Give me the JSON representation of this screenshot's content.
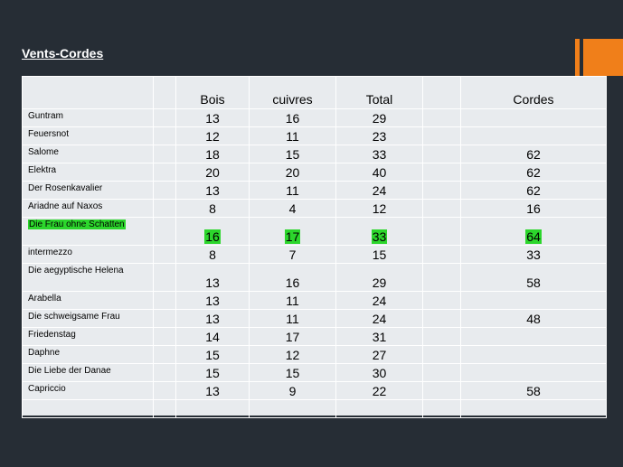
{
  "slide": {
    "title": "Vents-Cordes",
    "accent_color": "#f07f1a",
    "highlight_color": "#2cd62c"
  },
  "table": {
    "headers": [
      "",
      "",
      "Bois",
      "cuivres",
      "Total",
      "",
      "Cordes"
    ],
    "rows": [
      {
        "name": "Guntram",
        "bois": "13",
        "cuivres": "16",
        "total": "29",
        "cordes": ""
      },
      {
        "name": "Feuersnot",
        "bois": "12",
        "cuivres": "11",
        "total": "23",
        "cordes": ""
      },
      {
        "name": "Salome",
        "bois": "18",
        "cuivres": "15",
        "total": "33",
        "cordes": "62"
      },
      {
        "name": "Elektra",
        "bois": "20",
        "cuivres": "20",
        "total": "40",
        "cordes": "62"
      },
      {
        "name": "Der Rosenkavalier",
        "bois": "13",
        "cuivres": "11",
        "total": "24",
        "cordes": "62"
      },
      {
        "name": "Ariadne auf Naxos",
        "bois": "8",
        "cuivres": "4",
        "total": "12",
        "cordes": "16"
      },
      {
        "name": "Die Frau ohne Schatten",
        "bois": "16",
        "cuivres": "17",
        "total": "33",
        "cordes": "64",
        "highlighted": true
      },
      {
        "name": "intermezzo",
        "bois": "8",
        "cuivres": "7",
        "total": "15",
        "cordes": "33"
      },
      {
        "name": "Die aegyptische Helena",
        "bois": "13",
        "cuivres": "16",
        "total": "29",
        "cordes": "58"
      },
      {
        "name": "Arabella",
        "bois": "13",
        "cuivres": "11",
        "total": "24",
        "cordes": ""
      },
      {
        "name": "Die schweigsame Frau",
        "bois": "13",
        "cuivres": "11",
        "total": "24",
        "cordes": "48"
      },
      {
        "name": "Friedenstag",
        "bois": "14",
        "cuivres": "17",
        "total": "31",
        "cordes": ""
      },
      {
        "name": "Daphne",
        "bois": "15",
        "cuivres": "12",
        "total": "27",
        "cordes": ""
      },
      {
        "name": "Die Liebe der Danae",
        "bois": "15",
        "cuivres": "15",
        "total": "30",
        "cordes": ""
      },
      {
        "name": "Capriccio",
        "bois": "13",
        "cuivres": "9",
        "total": "22",
        "cordes": "58"
      },
      {
        "name": "",
        "bois": "",
        "cuivres": "",
        "total": "",
        "cordes": ""
      }
    ]
  }
}
